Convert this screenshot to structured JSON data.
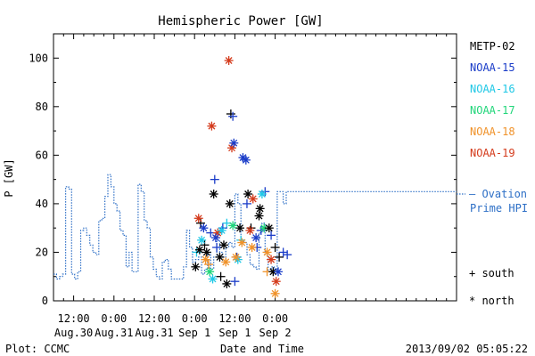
{
  "chart_data": {
    "type": "scatter",
    "title": "Hemispheric Power [GW]",
    "ylabel": "P [GW]",
    "xlabel": "Date and Time",
    "credit": "Plot: CCMC",
    "timestamp": "2013/09/02 05:05:22",
    "ylim": [
      0,
      110
    ],
    "xlim_hours": [
      -2,
      18
    ],
    "yticks": [
      "0",
      "20",
      "40",
      "60",
      "80",
      "100"
    ],
    "xticks": [
      {
        "t": -1,
        "time": "12:00",
        "date": "Aug.30"
      },
      {
        "t": 1,
        "time": "0:00",
        "date": "Aug.31"
      },
      {
        "t": 3,
        "time": "12:00",
        "date": "Aug.31"
      },
      {
        "t": 5,
        "time": "0:00",
        "date": "Sep 1"
      },
      {
        "t": 7,
        "time": "12:00",
        "date": "Sep 1"
      },
      {
        "t": 9,
        "time": "0:00",
        "date": "Sep 2"
      }
    ],
    "legend": [
      {
        "name": "METP-02",
        "color": "#000000"
      },
      {
        "name": "NOAA-15",
        "color": "#1a3cc8"
      },
      {
        "name": "NOAA-16",
        "color": "#1fc8e6"
      },
      {
        "name": "NOAA-17",
        "color": "#21d67a"
      },
      {
        "name": "NOAA-18",
        "color": "#f0922a"
      },
      {
        "name": "NOAA-19",
        "color": "#d43b1c"
      }
    ],
    "ovation": {
      "label_line1": "— Ovation",
      "label_line2": "Prime HPI",
      "current_value": 44,
      "color": "#2d6fc6",
      "x": [
        -2,
        -1.85,
        -1.7,
        -1.55,
        -1.4,
        -1.25,
        -1.1,
        -0.95,
        -0.8,
        -0.65,
        -0.5,
        -0.35,
        -0.2,
        -0.05,
        0.1,
        0.25,
        0.4,
        0.55,
        0.7,
        0.85,
        1.0,
        1.15,
        1.3,
        1.45,
        1.6,
        1.75,
        1.9,
        2.05,
        2.2,
        2.35,
        2.5,
        2.65,
        2.8,
        2.95,
        3.1,
        3.25,
        3.4,
        3.55,
        3.7,
        3.85,
        4.0,
        4.15,
        4.3,
        4.45,
        4.6,
        4.75,
        4.9,
        5.05,
        5.2,
        5.35,
        5.5,
        5.65,
        5.8,
        5.95,
        6.1,
        6.25,
        6.4,
        6.55,
        6.7,
        6.85,
        7.0,
        7.15,
        7.3,
        7.45,
        7.6,
        7.75,
        7.9,
        8.05,
        8.2,
        8.35,
        8.5,
        8.65,
        8.8,
        8.95,
        9.1,
        9.25,
        9.4,
        9.55
      ],
      "y": [
        11,
        9,
        10,
        11,
        47,
        46,
        11,
        9,
        12,
        29,
        30,
        27,
        23,
        20,
        19,
        33,
        34,
        43,
        52,
        47,
        40,
        37,
        29,
        27,
        14,
        20,
        12,
        12,
        48,
        45,
        33,
        30,
        18,
        13,
        10,
        9,
        16,
        17,
        13,
        9,
        9,
        9,
        9,
        14,
        29,
        22,
        16,
        17,
        18,
        11,
        13,
        20,
        13,
        18,
        25,
        20,
        16,
        22,
        24,
        22,
        44,
        40,
        25,
        24,
        19,
        15,
        14,
        13,
        28,
        32,
        19,
        12,
        14,
        13,
        45,
        45,
        40,
        45
      ]
    },
    "south": {
      "symbol": "+",
      "legend_label": "+ south",
      "points": [
        {
          "x": 5.3,
          "y": 32,
          "s": 0
        },
        {
          "x": 5.5,
          "y": 23,
          "s": 0
        },
        {
          "x": 5.8,
          "y": 28,
          "s": 1
        },
        {
          "x": 6.0,
          "y": 50,
          "s": 1
        },
        {
          "x": 6.1,
          "y": 22,
          "s": 1
        },
        {
          "x": 6.3,
          "y": 10,
          "s": 0
        },
        {
          "x": 6.6,
          "y": 32,
          "s": 2
        },
        {
          "x": 6.8,
          "y": 77,
          "s": 0
        },
        {
          "x": 6.9,
          "y": 76,
          "s": 1
        },
        {
          "x": 7.1,
          "y": 18,
          "s": 1
        },
        {
          "x": 7.3,
          "y": 25,
          "s": 2
        },
        {
          "x": 7.6,
          "y": 40,
          "s": 1
        },
        {
          "x": 7.8,
          "y": 30,
          "s": 0
        },
        {
          "x": 8.1,
          "y": 22,
          "s": 1
        },
        {
          "x": 8.3,
          "y": 29,
          "s": 1
        },
        {
          "x": 8.5,
          "y": 45,
          "s": 1
        },
        {
          "x": 8.6,
          "y": 12,
          "s": 4
        },
        {
          "x": 8.8,
          "y": 27,
          "s": 1
        },
        {
          "x": 9.0,
          "y": 22,
          "s": 0
        },
        {
          "x": 9.2,
          "y": 18,
          "s": 0
        },
        {
          "x": 9.4,
          "y": 20,
          "s": 1
        },
        {
          "x": 9.6,
          "y": 19,
          "s": 1
        },
        {
          "x": 5.1,
          "y": 20,
          "s": 2
        },
        {
          "x": 5.7,
          "y": 15,
          "s": 4
        },
        {
          "x": 6.4,
          "y": 30,
          "s": 1
        },
        {
          "x": 7.0,
          "y": 8,
          "s": 1
        }
      ]
    },
    "north": {
      "symbol": "*",
      "legend_label": "* north",
      "points": [
        {
          "x": 5.05,
          "y": 14,
          "s": 0
        },
        {
          "x": 5.2,
          "y": 34,
          "s": 5
        },
        {
          "x": 5.45,
          "y": 30,
          "s": 1
        },
        {
          "x": 5.6,
          "y": 20,
          "s": 0
        },
        {
          "x": 5.85,
          "y": 72,
          "s": 5
        },
        {
          "x": 5.95,
          "y": 44,
          "s": 0
        },
        {
          "x": 6.15,
          "y": 28,
          "s": 5
        },
        {
          "x": 6.25,
          "y": 18,
          "s": 0
        },
        {
          "x": 6.45,
          "y": 23,
          "s": 0
        },
        {
          "x": 6.6,
          "y": 7,
          "s": 0
        },
        {
          "x": 6.7,
          "y": 99,
          "s": 5
        },
        {
          "x": 6.75,
          "y": 40,
          "s": 0
        },
        {
          "x": 6.85,
          "y": 63,
          "s": 5
        },
        {
          "x": 6.95,
          "y": 65,
          "s": 1
        },
        {
          "x": 7.15,
          "y": 17,
          "s": 2
        },
        {
          "x": 7.25,
          "y": 30,
          "s": 0
        },
        {
          "x": 7.4,
          "y": 59,
          "s": 1
        },
        {
          "x": 7.55,
          "y": 58,
          "s": 1
        },
        {
          "x": 7.65,
          "y": 44,
          "s": 0
        },
        {
          "x": 7.75,
          "y": 29,
          "s": 5
        },
        {
          "x": 7.9,
          "y": 42,
          "s": 5
        },
        {
          "x": 8.05,
          "y": 26,
          "s": 1
        },
        {
          "x": 8.2,
          "y": 35,
          "s": 0
        },
        {
          "x": 8.35,
          "y": 44,
          "s": 2
        },
        {
          "x": 8.45,
          "y": 30,
          "s": 3
        },
        {
          "x": 8.6,
          "y": 20,
          "s": 4
        },
        {
          "x": 8.7,
          "y": 30,
          "s": 0
        },
        {
          "x": 8.9,
          "y": 12,
          "s": 0
        },
        {
          "x": 9.05,
          "y": 8,
          "s": 5
        },
        {
          "x": 9.15,
          "y": 12,
          "s": 1
        },
        {
          "x": 5.35,
          "y": 25,
          "s": 2
        },
        {
          "x": 5.55,
          "y": 17,
          "s": 4
        },
        {
          "x": 5.75,
          "y": 12,
          "s": 3
        },
        {
          "x": 6.05,
          "y": 26,
          "s": 1
        },
        {
          "x": 6.35,
          "y": 29,
          "s": 2
        },
        {
          "x": 6.55,
          "y": 16,
          "s": 4
        },
        {
          "x": 7.05,
          "y": 18,
          "s": 4
        },
        {
          "x": 7.35,
          "y": 24,
          "s": 4
        },
        {
          "x": 7.85,
          "y": 22,
          "s": 4
        },
        {
          "x": 8.25,
          "y": 38,
          "s": 0
        },
        {
          "x": 8.8,
          "y": 17,
          "s": 5
        },
        {
          "x": 9.0,
          "y": 3,
          "s": 4
        },
        {
          "x": 5.25,
          "y": 21,
          "s": 0
        },
        {
          "x": 5.9,
          "y": 9,
          "s": 2
        },
        {
          "x": 6.9,
          "y": 31,
          "s": 3
        }
      ]
    }
  }
}
